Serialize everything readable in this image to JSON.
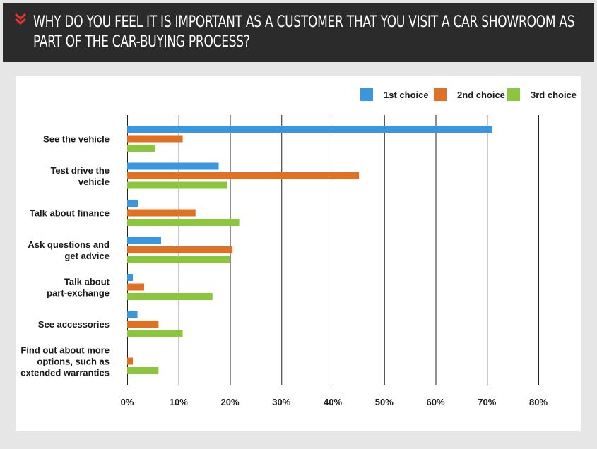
{
  "header": {
    "title": "Why do you feel it is important as a customer that you visit a car showroom as part of the car-buying process?"
  },
  "colors": {
    "first": "#3a96dd",
    "second": "#e07024",
    "third": "#8cc63f",
    "header_bg": "#2b2b2b",
    "chevron": "#e2332f",
    "gridline": "#222222"
  },
  "chart_data": {
    "type": "bar",
    "orientation": "horizontal",
    "categories": [
      "See the vehicle",
      "Test drive the vehicle",
      "Talk about finance",
      "Ask questions and get advice",
      "Talk about part-exchange",
      "See accessories",
      "Find out about more options, such as extended warranties"
    ],
    "category_lines": [
      [
        "See the vehicle"
      ],
      [
        "Test drive the",
        "vehicle"
      ],
      [
        "Talk about finance"
      ],
      [
        "Ask questions and",
        "get advice"
      ],
      [
        "Talk about",
        "part-exchange"
      ],
      [
        "See accessories"
      ],
      [
        "Find out about more",
        "options, such as",
        "extended warranties"
      ]
    ],
    "series": [
      {
        "name": "1st choice",
        "color": "#3a96dd",
        "values": [
          71,
          17.8,
          2.1,
          6.6,
          1.1,
          2,
          0
        ]
      },
      {
        "name": "2nd choice",
        "color": "#e07024",
        "values": [
          10.8,
          45.1,
          13.3,
          20.5,
          3.3,
          6.1,
          1.1
        ]
      },
      {
        "name": "3rd choice",
        "color": "#8cc63f",
        "values": [
          5.4,
          19.5,
          21.8,
          20,
          16.6,
          10.8,
          6.1
        ]
      }
    ],
    "x_ticks": [
      "0%",
      "10%",
      "20%",
      "30%",
      "40%",
      "50%",
      "60%",
      "70%",
      "80%"
    ],
    "xlim": [
      0,
      80
    ],
    "grid": true,
    "legend": "top-right"
  }
}
